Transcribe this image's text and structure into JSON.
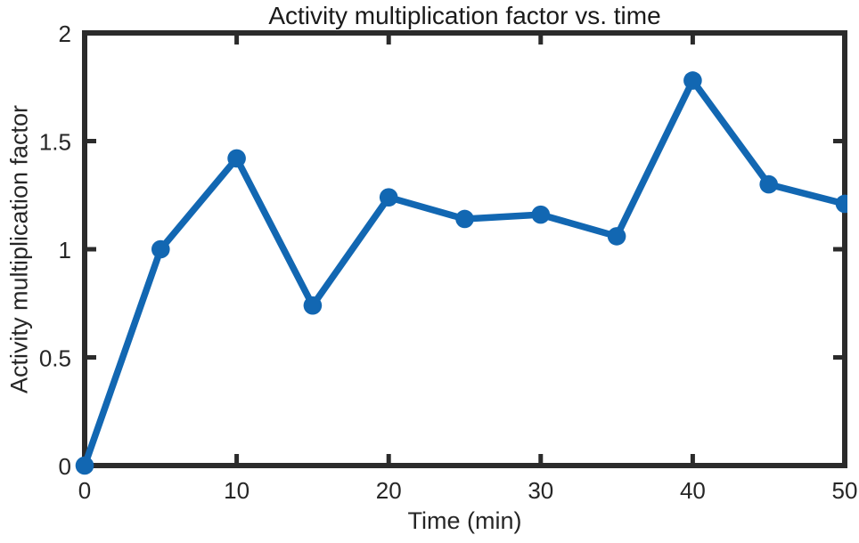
{
  "chart_data": {
    "type": "line",
    "title": "Activity multiplication factor vs. time",
    "xlabel": "Time (min)",
    "ylabel": "Activity multiplication factor",
    "x": [
      0,
      5,
      10,
      15,
      20,
      25,
      30,
      35,
      40,
      45,
      50
    ],
    "series": [
      {
        "name": "activity multiplication factor",
        "values": [
          0,
          1.0,
          1.42,
          0.74,
          1.24,
          1.14,
          1.16,
          1.06,
          1.78,
          1.3,
          1.21
        ]
      }
    ],
    "xlim": [
      0,
      50
    ],
    "ylim": [
      0,
      2
    ],
    "xticks": [
      0,
      10,
      20,
      30,
      40,
      50
    ],
    "xtick_labels": [
      "0",
      "10",
      "20",
      "30",
      "40",
      "50"
    ],
    "yticks": [
      0,
      0.5,
      1,
      1.5,
      2
    ],
    "ytick_labels": [
      "0",
      "0.5",
      "1",
      "1.5",
      "2"
    ],
    "grid": false,
    "box": true,
    "tick_direction": "in",
    "marker_style": "filled-circle",
    "colors": {
      "line": "#1267b2",
      "marker": "#1267b2",
      "axis": "#2b2b2b",
      "tick_label": "#262626",
      "title": "#1a1a1a",
      "background": "#ffffff"
    }
  }
}
